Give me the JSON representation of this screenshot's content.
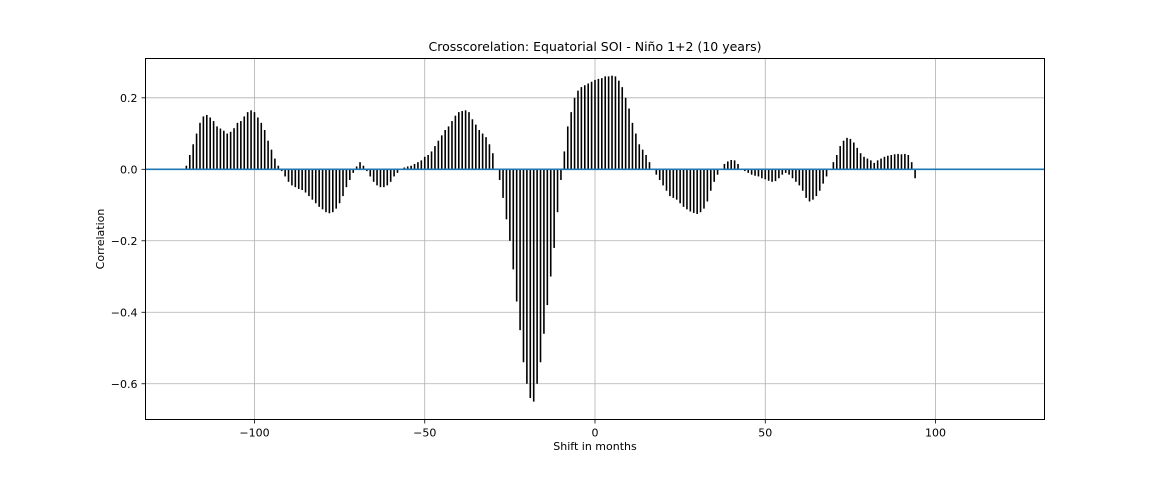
{
  "chart_data": {
    "type": "bar",
    "title": "Crosscorelation: Equatorial SOI - Niño 1+2 (10 years)",
    "xlabel": "Shift in months",
    "ylabel": "Correlation",
    "xlim": [
      -132,
      132
    ],
    "ylim": [
      -0.7,
      0.31
    ],
    "grid": true,
    "x_ticks": [
      {
        "value": -100,
        "label": "−100"
      },
      {
        "value": -50,
        "label": "−50"
      },
      {
        "value": 0,
        "label": "0"
      },
      {
        "value": 50,
        "label": "50"
      },
      {
        "value": 100,
        "label": "100"
      }
    ],
    "y_ticks": [
      {
        "value": 0.2,
        "label": "0.2"
      },
      {
        "value": 0.0,
        "label": "0.0"
      },
      {
        "value": -0.2,
        "label": "−0.2"
      },
      {
        "value": -0.4,
        "label": "−0.4"
      },
      {
        "value": -0.6,
        "label": "−0.6"
      }
    ],
    "x_start": -120,
    "x_step": 1,
    "values": [
      0.01,
      0.04,
      0.07,
      0.1,
      0.13,
      0.148,
      0.152,
      0.145,
      0.135,
      0.12,
      0.114,
      0.108,
      0.1,
      0.105,
      0.115,
      0.13,
      0.135,
      0.148,
      0.16,
      0.165,
      0.16,
      0.145,
      0.13,
      0.11,
      0.08,
      0.055,
      0.03,
      0.01,
      -0.005,
      -0.02,
      -0.035,
      -0.045,
      -0.05,
      -0.055,
      -0.058,
      -0.065,
      -0.075,
      -0.085,
      -0.095,
      -0.105,
      -0.112,
      -0.12,
      -0.123,
      -0.12,
      -0.11,
      -0.095,
      -0.075,
      -0.05,
      -0.03,
      -0.01,
      0.008,
      0.02,
      0.01,
      -0.005,
      -0.02,
      -0.035,
      -0.045,
      -0.05,
      -0.05,
      -0.045,
      -0.035,
      -0.02,
      -0.01,
      0.0,
      0.005,
      0.008,
      0.01,
      0.015,
      0.02,
      0.025,
      0.035,
      0.04,
      0.05,
      0.065,
      0.08,
      0.095,
      0.11,
      0.12,
      0.135,
      0.15,
      0.16,
      0.163,
      0.165,
      0.16,
      0.14,
      0.125,
      0.11,
      0.1,
      0.09,
      0.07,
      0.045,
      0.0,
      -0.03,
      -0.08,
      -0.14,
      -0.2,
      -0.28,
      -0.37,
      -0.45,
      -0.54,
      -0.6,
      -0.64,
      -0.65,
      -0.6,
      -0.54,
      -0.46,
      -0.38,
      -0.3,
      -0.22,
      -0.12,
      -0.03,
      0.05,
      0.12,
      0.16,
      0.2,
      0.22,
      0.23,
      0.235,
      0.24,
      0.245,
      0.25,
      0.253,
      0.255,
      0.26,
      0.26,
      0.262,
      0.26,
      0.248,
      0.23,
      0.2,
      0.17,
      0.13,
      0.1,
      0.07,
      0.055,
      0.04,
      0.02,
      0.0,
      -0.015,
      -0.03,
      -0.045,
      -0.06,
      -0.075,
      -0.08,
      -0.085,
      -0.095,
      -0.105,
      -0.112,
      -0.118,
      -0.122,
      -0.125,
      -0.12,
      -0.11,
      -0.09,
      -0.06,
      -0.035,
      -0.015,
      0.0,
      0.015,
      0.022,
      0.026,
      0.025,
      0.015,
      0.0,
      -0.005,
      -0.01,
      -0.015,
      -0.018,
      -0.02,
      -0.025,
      -0.028,
      -0.032,
      -0.035,
      -0.033,
      -0.025,
      -0.015,
      -0.01,
      -0.015,
      -0.025,
      -0.035,
      -0.045,
      -0.06,
      -0.08,
      -0.09,
      -0.085,
      -0.075,
      -0.06,
      -0.04,
      -0.02,
      0.0,
      0.02,
      0.04,
      0.065,
      0.08,
      0.088,
      0.085,
      0.075,
      0.06,
      0.045,
      0.035,
      0.03,
      0.025,
      0.018,
      0.025,
      0.03,
      0.035,
      0.038,
      0.04,
      0.042,
      0.043,
      0.042,
      0.043,
      0.04,
      0.02,
      -0.025
    ],
    "bar_color": "#000000",
    "zero_line_color": "#1f77b4",
    "grid_color": "#b0b0b0"
  }
}
